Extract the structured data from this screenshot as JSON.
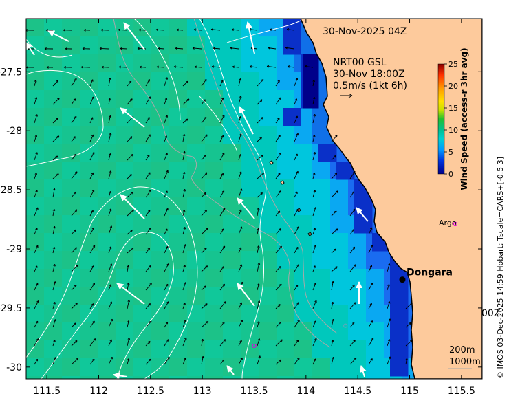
{
  "map": {
    "timestamp": "30-Nov-2025 04Z",
    "product_line1": "NRT00 GSL",
    "product_line2": "30-Nov 18:00Z",
    "scale_note": "0.5m/s (1kt 6h)",
    "town_label": "Dongara",
    "argo_label": "Argo",
    "edge_fragment": "00Z",
    "isobath_200": "200m",
    "isobath_1000": "1000m",
    "credit": "© IMOS 03-Dec-2025 14:59 Hobart; Tscale=CARS+[-0.5 3]",
    "x_ticks": [
      "111.5",
      "112",
      "112.5",
      "113",
      "113.5",
      "114",
      "114.5",
      "115",
      "115.5"
    ],
    "y_ticks": [
      "-27.5",
      "-28",
      "-28.5",
      "-29",
      "-29.5",
      "-30"
    ],
    "x_tick_values": [
      111.5,
      112,
      112.5,
      113,
      113.5,
      114,
      114.5,
      115,
      115.5
    ],
    "y_tick_values": [
      -27.5,
      -28,
      -28.5,
      -29,
      -29.5,
      -30
    ],
    "lon_range": [
      111.3,
      115.7
    ],
    "lat_range": [
      -30.1,
      -27.05
    ],
    "town_position": {
      "lon": 114.93,
      "lat": -29.26
    },
    "argo_floats": [
      {
        "lon": 115.44,
        "lat": -28.79
      },
      {
        "lon": 113.5,
        "lat": -29.82
      },
      {
        "lon": 114.38,
        "lat": -29.65
      }
    ],
    "colorbar": {
      "title": "Wind Speed (access-r 3hr avg)",
      "ticks": [
        "25",
        "20",
        "15",
        "10",
        "5",
        "0"
      ],
      "tick_values": [
        25,
        20,
        15,
        10,
        5,
        0
      ],
      "range": [
        0,
        25
      ],
      "colors": [
        "#00008a",
        "#0033dd",
        "#0099ff",
        "#00d0d0",
        "#00c090",
        "#22c030",
        "#c8e000",
        "#ffe000",
        "#ff9a00",
        "#ff3000",
        "#8a0000"
      ]
    },
    "colors": {
      "land": "#fdca9c",
      "coast": "#000000",
      "contour": "#ffffff",
      "bathy": "#a8a8a8"
    }
  }
}
